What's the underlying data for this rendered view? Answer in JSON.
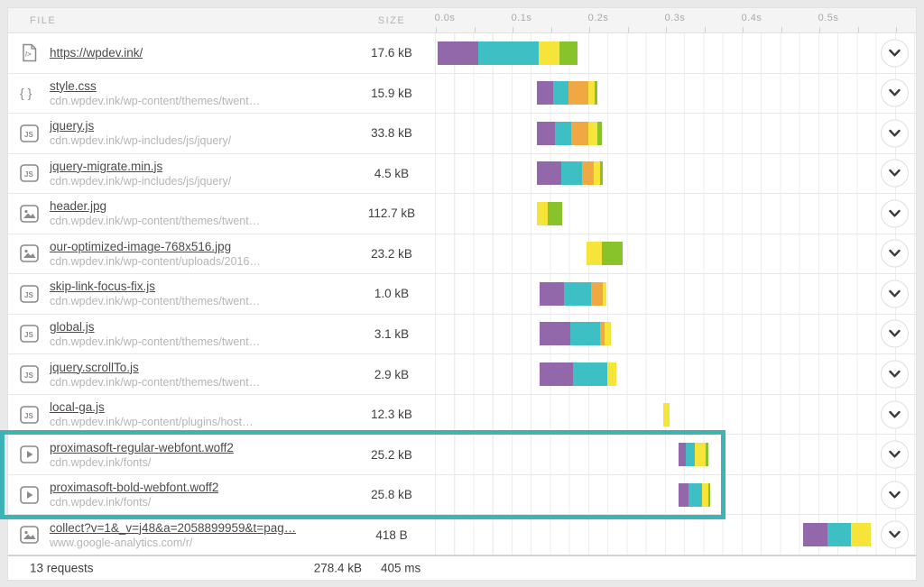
{
  "header": {
    "file_label": "FILE",
    "size_label": "SIZE",
    "ticks": [
      "0.0s",
      "0.1s",
      "0.2s",
      "0.3s",
      "0.4s",
      "0.5s"
    ]
  },
  "colors": {
    "purple": "#9268ab",
    "teal": "#3ebfc4",
    "orange": "#f0a843",
    "yellow": "#f6e43a",
    "green": "#88c32c",
    "highlight": "#3db3b6"
  },
  "rows": [
    {
      "icon": "html",
      "file": "https://wpdev.ink/",
      "path": "",
      "size": "17.6 kB",
      "segments": [
        {
          "c": "purple",
          "start": 0.002,
          "end": 0.055
        },
        {
          "c": "teal",
          "start": 0.055,
          "end": 0.134
        },
        {
          "c": "yellow",
          "start": 0.134,
          "end": 0.161
        },
        {
          "c": "green",
          "start": 0.161,
          "end": 0.185
        }
      ]
    },
    {
      "icon": "css",
      "file": "style.css",
      "path": "cdn.wpdev.ink/wp-content/themes/twent…",
      "size": "15.9 kB",
      "segments": [
        {
          "c": "purple",
          "start": 0.132,
          "end": 0.153
        },
        {
          "c": "teal",
          "start": 0.153,
          "end": 0.173
        },
        {
          "c": "orange",
          "start": 0.173,
          "end": 0.199
        },
        {
          "c": "yellow",
          "start": 0.199,
          "end": 0.207
        },
        {
          "c": "green",
          "start": 0.207,
          "end": 0.211
        }
      ]
    },
    {
      "icon": "js",
      "file": "jquery.js",
      "path": "cdn.wpdev.ink/wp-includes/js/jquery/",
      "size": "33.8 kB",
      "segments": [
        {
          "c": "purple",
          "start": 0.132,
          "end": 0.155
        },
        {
          "c": "teal",
          "start": 0.155,
          "end": 0.176
        },
        {
          "c": "orange",
          "start": 0.176,
          "end": 0.199
        },
        {
          "c": "yellow",
          "start": 0.199,
          "end": 0.211
        },
        {
          "c": "green",
          "start": 0.211,
          "end": 0.216
        }
      ]
    },
    {
      "icon": "js",
      "file": "jquery-migrate.min.js",
      "path": "cdn.wpdev.ink/wp-includes/js/jquery/",
      "size": "4.5 kB",
      "segments": [
        {
          "c": "purple",
          "start": 0.132,
          "end": 0.164
        },
        {
          "c": "teal",
          "start": 0.164,
          "end": 0.191
        },
        {
          "c": "orange",
          "start": 0.191,
          "end": 0.206
        },
        {
          "c": "yellow",
          "start": 0.206,
          "end": 0.214
        },
        {
          "c": "green",
          "start": 0.214,
          "end": 0.218
        }
      ]
    },
    {
      "icon": "image",
      "file": "header.jpg",
      "path": "cdn.wpdev.ink/wp-content/themes/twent…",
      "size": "112.7 kB",
      "segments": [
        {
          "c": "yellow",
          "start": 0.132,
          "end": 0.146
        },
        {
          "c": "green",
          "start": 0.146,
          "end": 0.165
        }
      ]
    },
    {
      "icon": "image",
      "file": "our-optimized-image-768x516.jpg",
      "path": "cdn.wpdev.ink/wp-content/uploads/2016…",
      "size": "23.2 kB",
      "segments": [
        {
          "c": "yellow",
          "start": 0.196,
          "end": 0.216
        },
        {
          "c": "green",
          "start": 0.216,
          "end": 0.244
        }
      ]
    },
    {
      "icon": "js",
      "file": "skip-link-focus-fix.js",
      "path": "cdn.wpdev.ink/wp-content/themes/twent…",
      "size": "1.0 kB",
      "segments": [
        {
          "c": "purple",
          "start": 0.135,
          "end": 0.167
        },
        {
          "c": "teal",
          "start": 0.167,
          "end": 0.202
        },
        {
          "c": "orange",
          "start": 0.202,
          "end": 0.218
        },
        {
          "c": "yellow",
          "start": 0.218,
          "end": 0.222
        }
      ]
    },
    {
      "icon": "js",
      "file": "global.js",
      "path": "cdn.wpdev.ink/wp-content/themes/twent…",
      "size": "3.1 kB",
      "segments": [
        {
          "c": "purple",
          "start": 0.135,
          "end": 0.175
        },
        {
          "c": "teal",
          "start": 0.175,
          "end": 0.214
        },
        {
          "c": "orange",
          "start": 0.214,
          "end": 0.22
        },
        {
          "c": "yellow",
          "start": 0.22,
          "end": 0.228
        }
      ]
    },
    {
      "icon": "js",
      "file": "jquery.scrollTo.js",
      "path": "cdn.wpdev.ink/wp-content/themes/twent…",
      "size": "2.9 kB",
      "segments": [
        {
          "c": "purple",
          "start": 0.135,
          "end": 0.179
        },
        {
          "c": "teal",
          "start": 0.179,
          "end": 0.224
        },
        {
          "c": "yellow",
          "start": 0.224,
          "end": 0.235
        }
      ]
    },
    {
      "icon": "js",
      "file": "local-ga.js",
      "path": "cdn.wpdev.ink/wp-content/plugins/host…",
      "size": "12.3 kB",
      "segments": [
        {
          "c": "yellow",
          "start": 0.296,
          "end": 0.305
        }
      ]
    },
    {
      "icon": "font",
      "file": "proximasoft-regular-webfont.woff2",
      "path": "cdn.wpdev.ink/fonts/",
      "size": "25.2 kB",
      "segments": [
        {
          "c": "purple",
          "start": 0.316,
          "end": 0.326
        },
        {
          "c": "teal",
          "start": 0.326,
          "end": 0.338
        },
        {
          "c": "yellow",
          "start": 0.338,
          "end": 0.352
        },
        {
          "c": "green",
          "start": 0.352,
          "end": 0.355
        }
      ]
    },
    {
      "icon": "font",
      "file": "proximasoft-bold-webfont.woff2",
      "path": "cdn.wpdev.ink/fonts/",
      "size": "25.8 kB",
      "segments": [
        {
          "c": "purple",
          "start": 0.316,
          "end": 0.329
        },
        {
          "c": "teal",
          "start": 0.329,
          "end": 0.347
        },
        {
          "c": "yellow",
          "start": 0.347,
          "end": 0.355
        },
        {
          "c": "green",
          "start": 0.355,
          "end": 0.358
        }
      ]
    },
    {
      "icon": "image",
      "file": "collect?v=1&_v=j48&a=2058899959&t=pag…",
      "path": "www.google-analytics.com/r/",
      "size": "418 B",
      "segments": [
        {
          "c": "purple",
          "start": 0.479,
          "end": 0.511
        },
        {
          "c": "teal",
          "start": 0.511,
          "end": 0.541
        },
        {
          "c": "yellow",
          "start": 0.541,
          "end": 0.567
        }
      ]
    }
  ],
  "footer": {
    "requests": "13 requests",
    "total_size": "278.4 kB",
    "total_time": "405 ms"
  }
}
